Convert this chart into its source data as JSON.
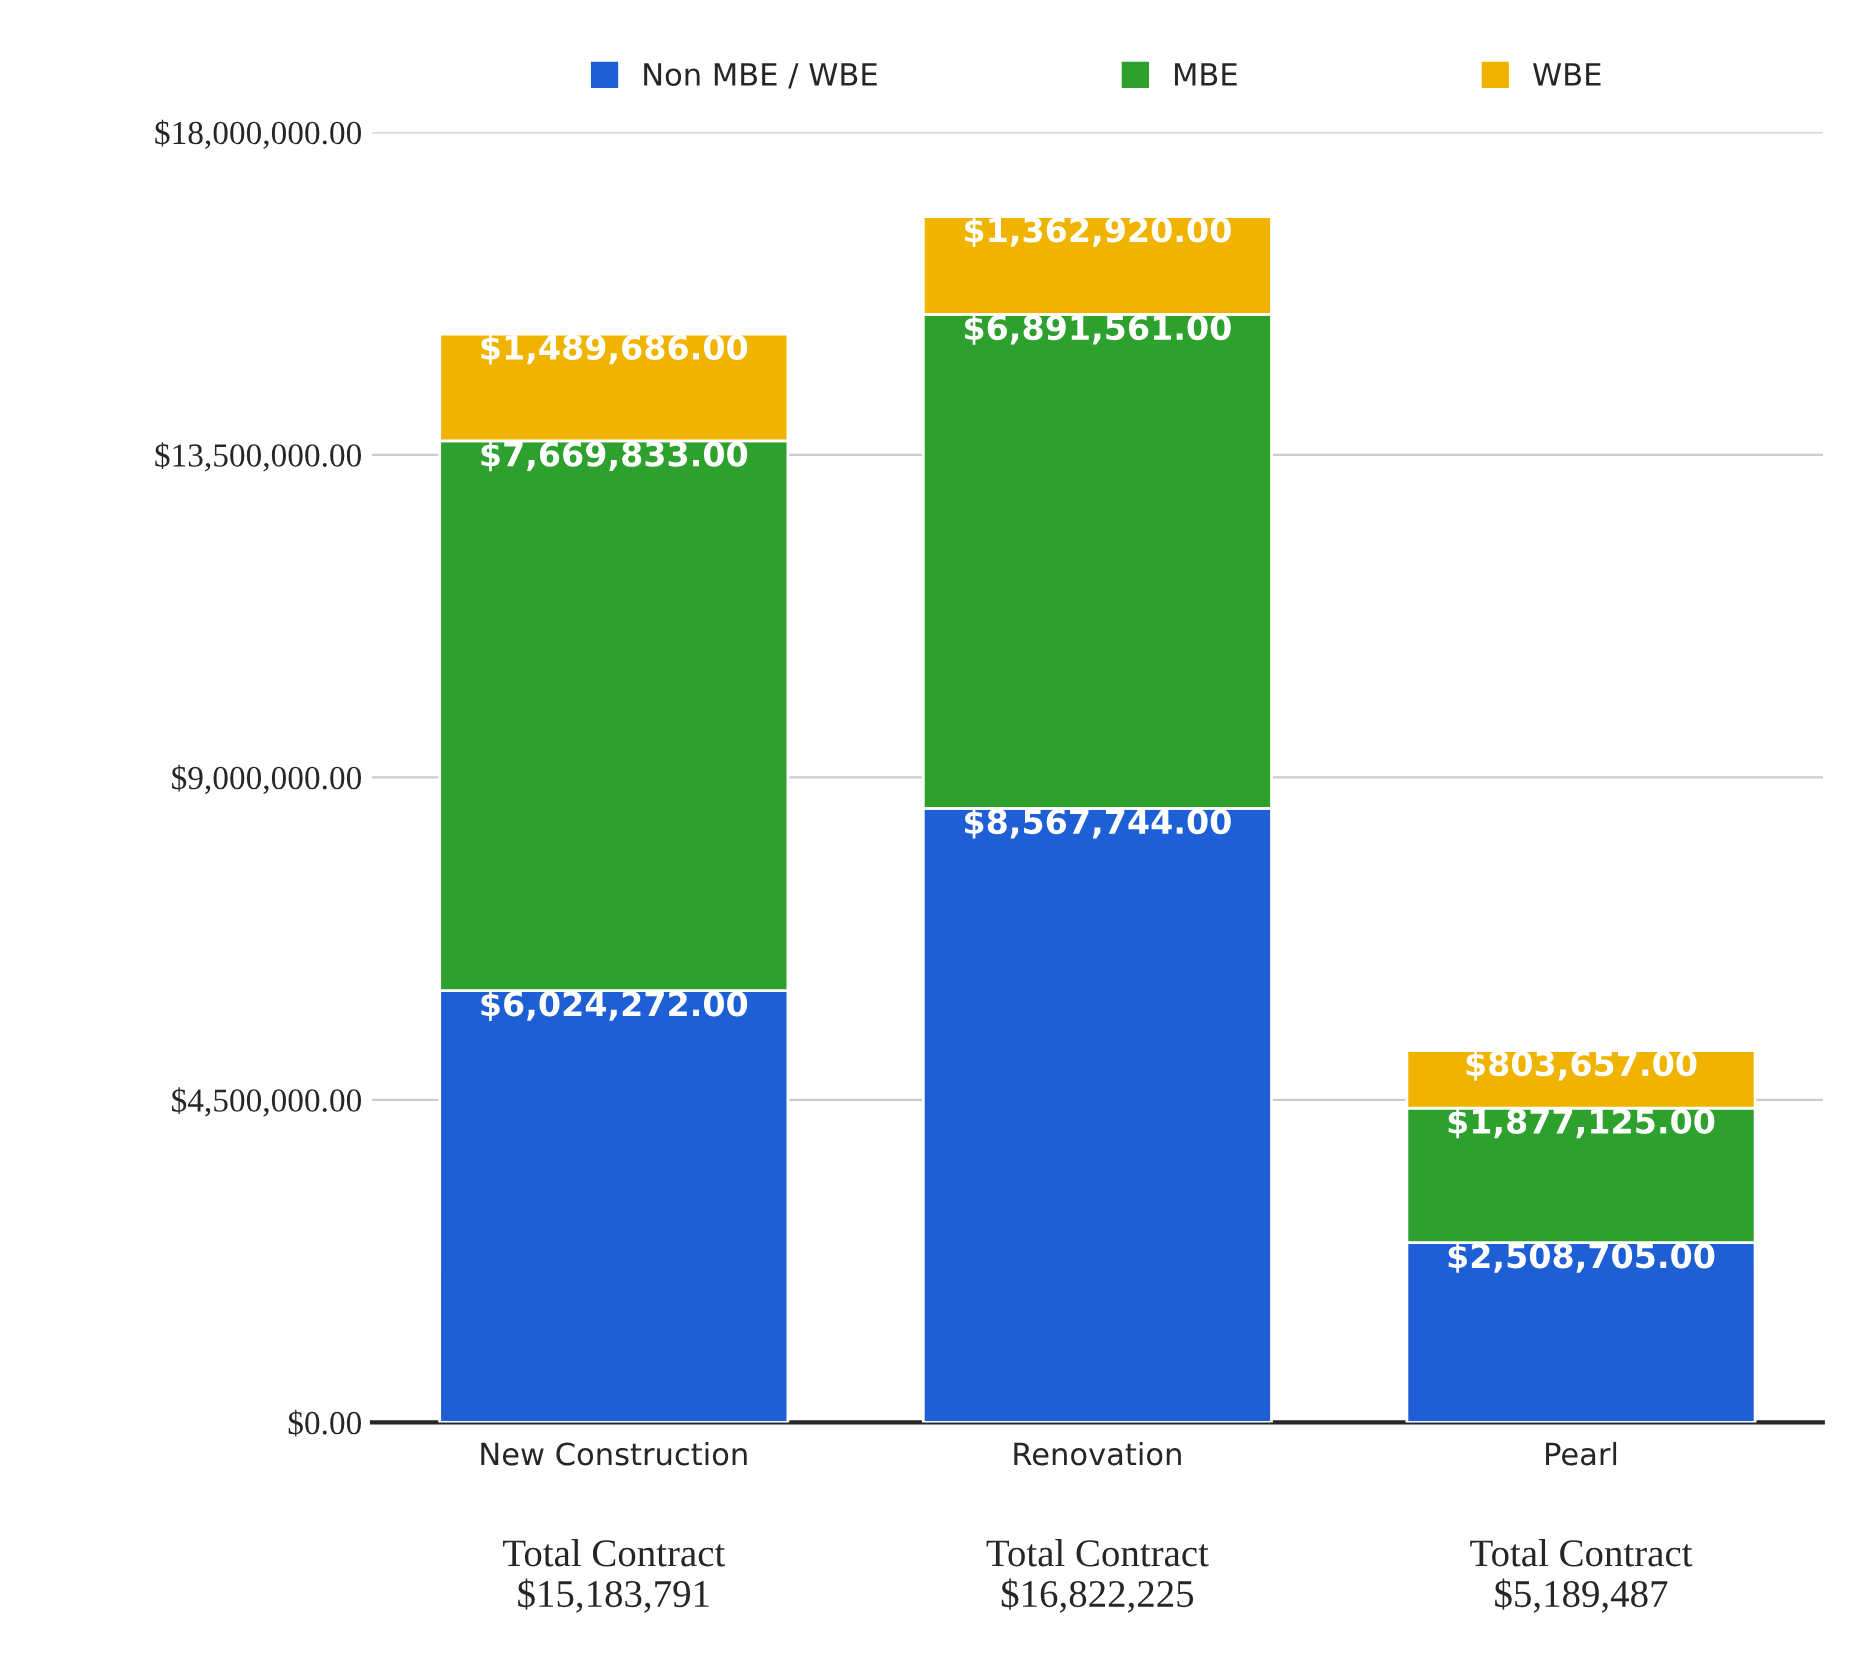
{
  "chart_data": {
    "type": "bar",
    "stacked": true,
    "categories": [
      "New Construction",
      "Renovation",
      "Pearl"
    ],
    "series": [
      {
        "name": "Non MBE / WBE",
        "color": "#1f5fd6",
        "values": [
          6024272,
          8567744,
          2508705
        ],
        "value_labels": [
          "$6,024,272.00",
          "$8,567,744.00",
          "$2,508,705.00"
        ]
      },
      {
        "name": "MBE",
        "color": "#2ea02e",
        "values": [
          7669833,
          6891561,
          1877125
        ],
        "value_labels": [
          "$7,669,833.00",
          "$6,891,561.00",
          "$1,877,125.00"
        ]
      },
      {
        "name": "WBE",
        "color": "#f0b400",
        "values": [
          1489686,
          1362920,
          803657
        ],
        "value_labels": [
          "$1,489,686.00",
          "$1,362,920.00",
          "$803,657.00"
        ]
      }
    ],
    "totals": [
      "Total Contract\n$15,183,791",
      "Total Contract\n$16,822,225",
      "Total Contract\n$5,189,487"
    ],
    "ylim": [
      0,
      18000000
    ],
    "yticks": [
      {
        "value": 0,
        "label": "$0.00"
      },
      {
        "value": 4500000,
        "label": "$4,500,000.00"
      },
      {
        "value": 9000000,
        "label": "$9,000,000.00"
      },
      {
        "value": 13500000,
        "label": "$13,500,000.00"
      },
      {
        "value": 18000000,
        "label": "$18,000,000.00"
      }
    ],
    "grid": "y",
    "legend": "top"
  }
}
